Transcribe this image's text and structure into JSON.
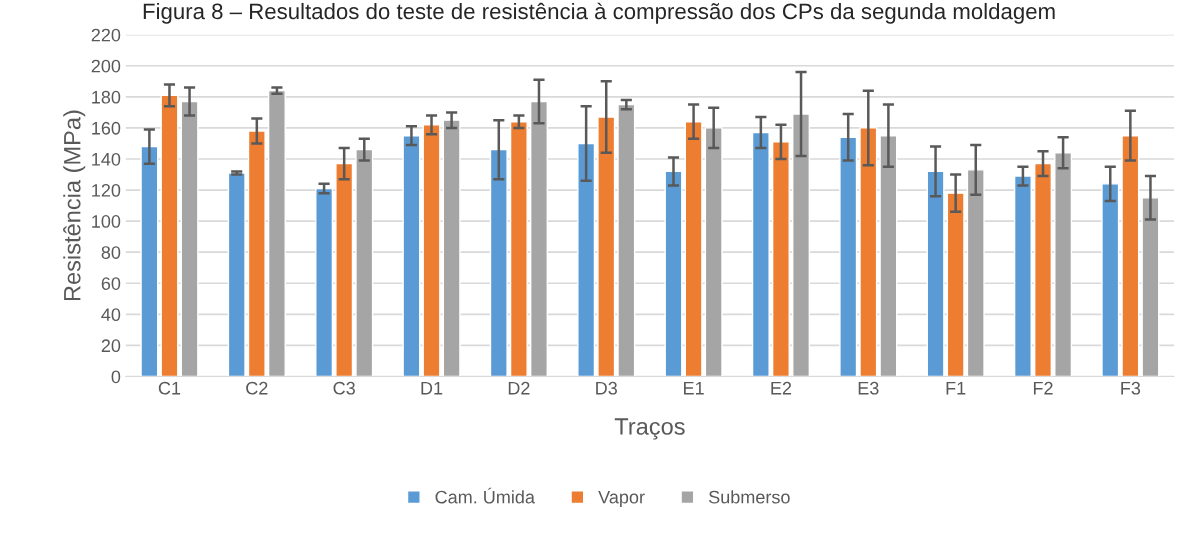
{
  "chart_data": {
    "type": "bar",
    "title": "Figura 8 – Resultados do teste de resistência à compressão dos CPs da segunda moldagem",
    "xlabel": "Traços",
    "ylabel": "Resistência (MPa)",
    "categories": [
      "C1",
      "C2",
      "C3",
      "D1",
      "D2",
      "D3",
      "E1",
      "E2",
      "E3",
      "F1",
      "F2",
      "F3"
    ],
    "series": [
      {
        "name": "Cam. Úmida",
        "color": "#5b9bd5",
        "values": [
          148,
          131,
          121,
          155,
          146,
          150,
          132,
          157,
          154,
          132,
          129,
          124
        ],
        "errors": [
          11,
          1,
          3,
          6,
          19,
          24,
          9,
          10,
          15,
          16,
          6,
          11
        ]
      },
      {
        "name": "Vapor",
        "color": "#ed7d31",
        "values": [
          181,
          158,
          137,
          162,
          164,
          167,
          164,
          151,
          160,
          118,
          137,
          155
        ],
        "errors": [
          7,
          8,
          10,
          6,
          4,
          23,
          11,
          11,
          24,
          12,
          8,
          16
        ]
      },
      {
        "name": "Submerso",
        "color": "#a5a5a5",
        "values": [
          177,
          184,
          146,
          165,
          177,
          175,
          160,
          169,
          155,
          133,
          144,
          115
        ],
        "errors": [
          9,
          2,
          7,
          5,
          14,
          3,
          13,
          27,
          20,
          16,
          10,
          14
        ]
      }
    ],
    "ylim": [
      0,
      220
    ],
    "yticks": [
      0,
      20,
      40,
      60,
      80,
      100,
      120,
      140,
      160,
      180,
      200,
      220
    ],
    "grid": "y",
    "legend": "bottom"
  }
}
